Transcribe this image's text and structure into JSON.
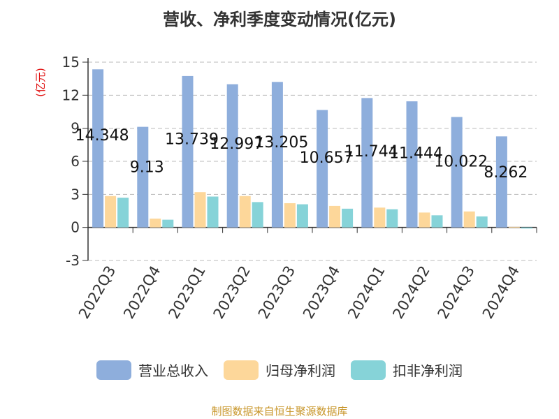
{
  "title": "营收、净利季度变动情况(亿元)",
  "source": "制图数据来自恒生聚源数据库",
  "chart_data": {
    "type": "bar",
    "title": "营收、净利季度变动情况(亿元)",
    "ylabel": "(亿元)",
    "xlabel": "",
    "ylim": [
      -3,
      15
    ],
    "yticks": [
      -3,
      0,
      3,
      6,
      9,
      12,
      15
    ],
    "grid": true,
    "legend_position": "bottom",
    "categories": [
      "2022Q3",
      "2022Q4",
      "2023Q1",
      "2023Q2",
      "2023Q3",
      "2023Q4",
      "2024Q1",
      "2024Q2",
      "2024Q3",
      "2024Q4"
    ],
    "series": [
      {
        "name": "营业总收入",
        "color": "#8eaedc",
        "values": [
          14.348,
          9.13,
          13.739,
          12.997,
          13.205,
          10.657,
          11.744,
          11.444,
          10.022,
          8.262
        ],
        "labels": [
          "14.348",
          "9.13",
          "13.739",
          "12.997",
          "13.205",
          "10.657",
          "11.744",
          "11.444",
          "10.022",
          "8.262"
        ]
      },
      {
        "name": "归母净利润",
        "color": "#fdd79a",
        "values": [
          2.85,
          0.8,
          3.2,
          2.85,
          2.2,
          1.95,
          1.8,
          1.35,
          1.45,
          0.05
        ]
      },
      {
        "name": "扣非净利润",
        "color": "#86d3d8",
        "values": [
          2.7,
          0.7,
          2.8,
          2.3,
          2.1,
          1.7,
          1.65,
          1.1,
          1.0,
          -0.1
        ]
      }
    ]
  }
}
